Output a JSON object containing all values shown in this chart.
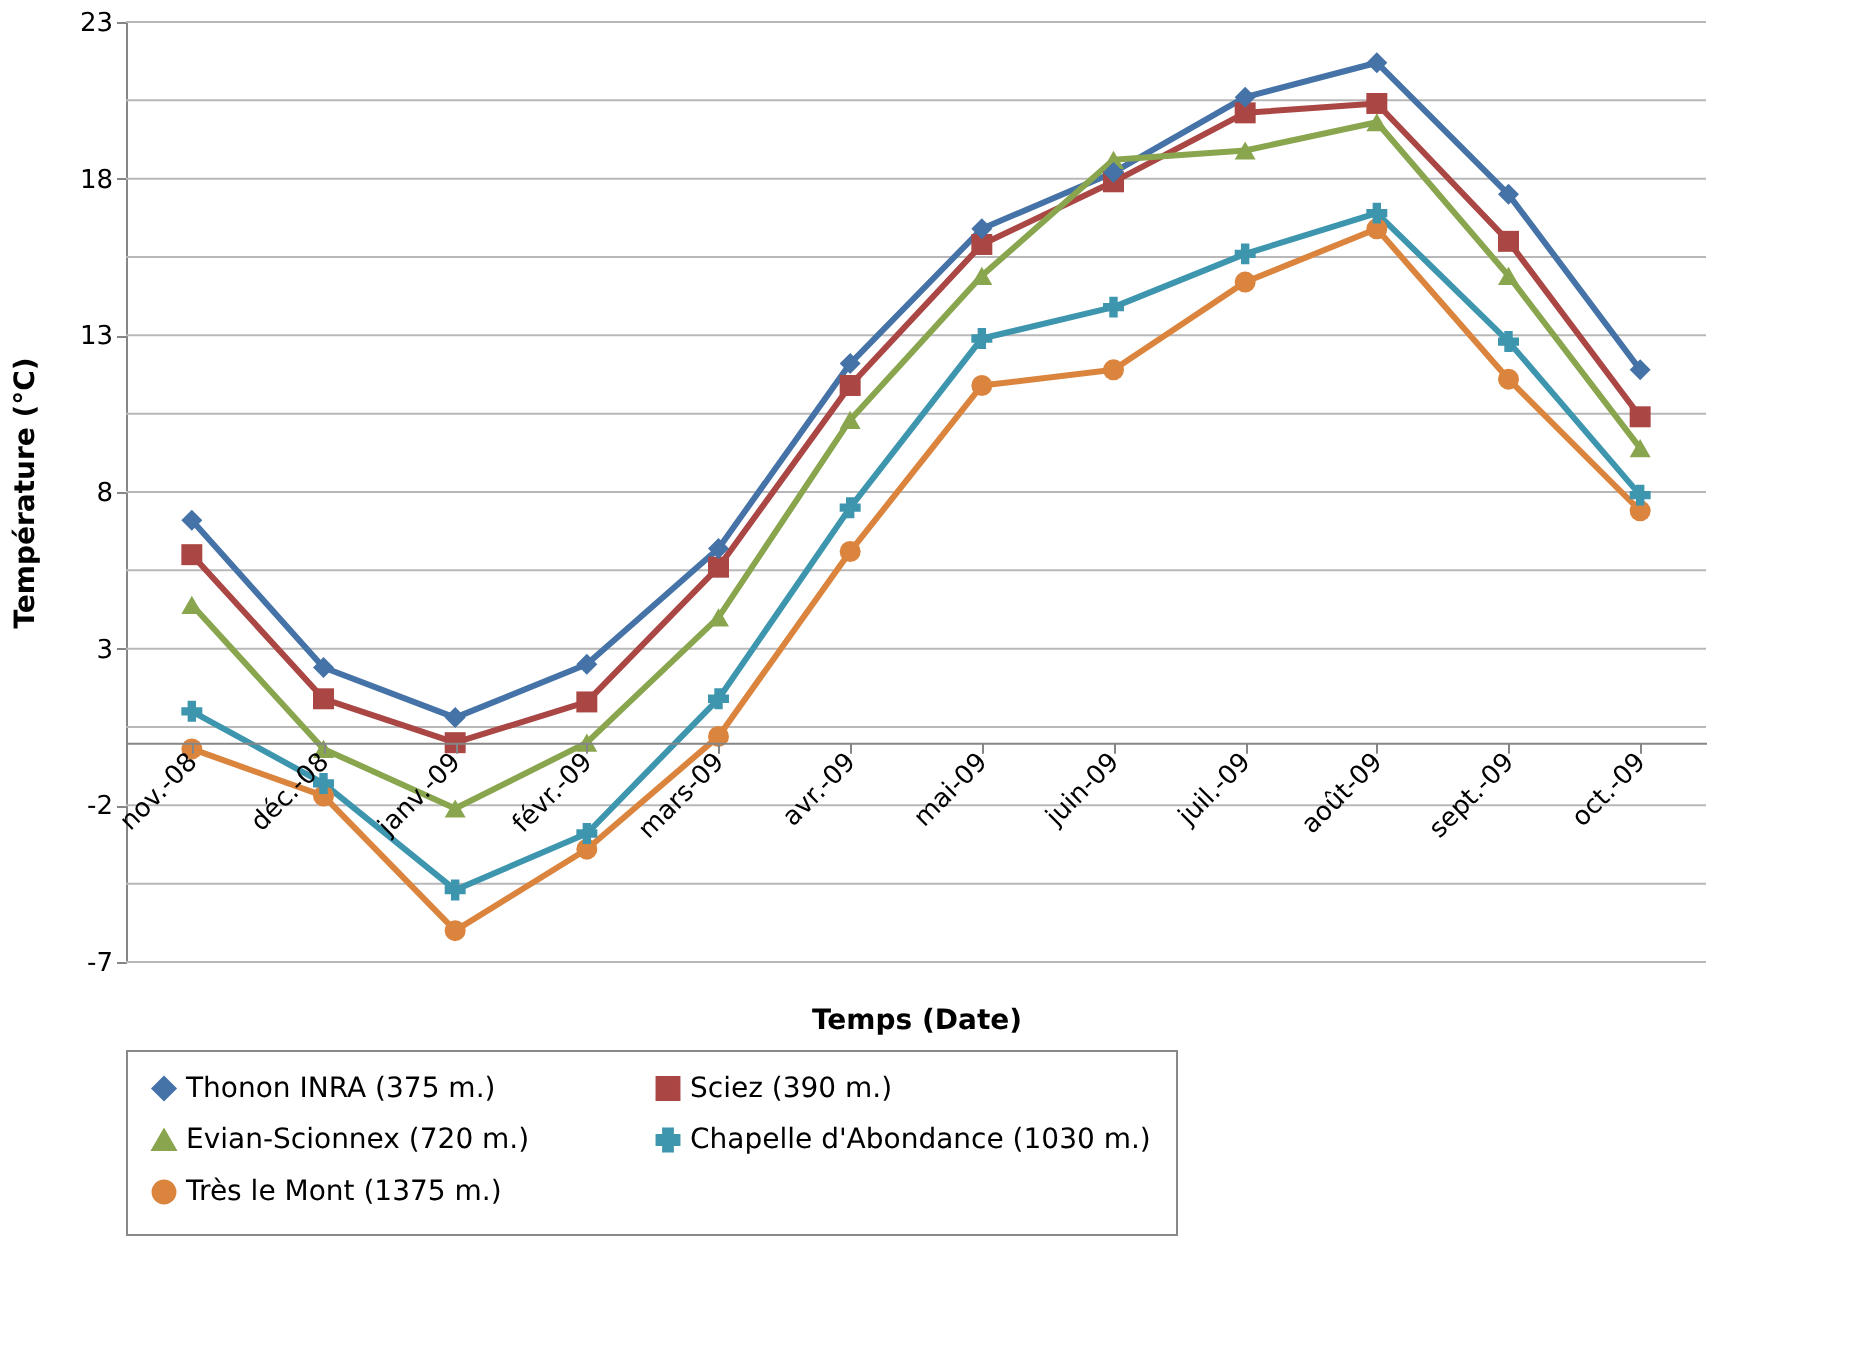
{
  "chart_data": {
    "type": "line",
    "xlabel": "Temps (Date)",
    "ylabel": "Température (°C)",
    "categories": [
      "nov.-08",
      "déc.-08",
      "janv.-09",
      "févr.-09",
      "mars-09",
      "avr.-09",
      "mai-09",
      "juin-09",
      "juil.-09",
      "août-09",
      "sept.-09",
      "oct.-09"
    ],
    "series": [
      {
        "name": "Thonon INRA (375 m.)",
        "color": "#4572a7",
        "marker": "diamond",
        "values": [
          7.1,
          2.4,
          0.8,
          2.5,
          6.2,
          12.1,
          16.4,
          18.2,
          20.6,
          21.7,
          17.5,
          11.9
        ]
      },
      {
        "name": "Sciez (390 m.)",
        "color": "#aa4643",
        "marker": "square",
        "values": [
          6.0,
          1.4,
          0.0,
          1.3,
          5.6,
          11.4,
          15.9,
          17.9,
          20.1,
          20.4,
          16.0,
          10.4
        ]
      },
      {
        "name": "Evian-Scionnex (720 m.)",
        "color": "#89a54e",
        "marker": "triangle",
        "values": [
          4.4,
          -0.2,
          -2.1,
          0.0,
          4.0,
          10.3,
          14.9,
          18.6,
          18.9,
          19.8,
          14.9,
          9.4
        ]
      },
      {
        "name": "Chapelle d'Abondance (1030 m.)",
        "color": "#3d96ae",
        "marker": "cross",
        "values": [
          1.0,
          -1.3,
          -4.7,
          -2.9,
          1.4,
          7.5,
          12.9,
          13.9,
          15.6,
          16.9,
          12.8,
          7.9
        ]
      },
      {
        "name": "Très le Mont (1375 m.)",
        "color": "#db843d",
        "marker": "circle",
        "values": [
          -0.2,
          -1.7,
          -6.0,
          -3.4,
          0.2,
          6.1,
          11.4,
          11.9,
          14.7,
          16.4,
          11.6,
          7.4
        ]
      }
    ],
    "ylim": [
      -7,
      23
    ],
    "yticks": [
      -7,
      {
        "value": -4.5,
        "label": null
      },
      -2,
      {
        "value": 0.5,
        "label": null
      },
      3,
      {
        "value": 5.5,
        "label": null
      },
      8,
      {
        "value": 10.5,
        "label": null
      },
      13,
      {
        "value": 15.5,
        "label": null
      },
      18,
      {
        "value": 20.5,
        "label": null
      },
      23
    ],
    "grid": "y",
    "legend": "bottom",
    "line_style": "solid"
  }
}
